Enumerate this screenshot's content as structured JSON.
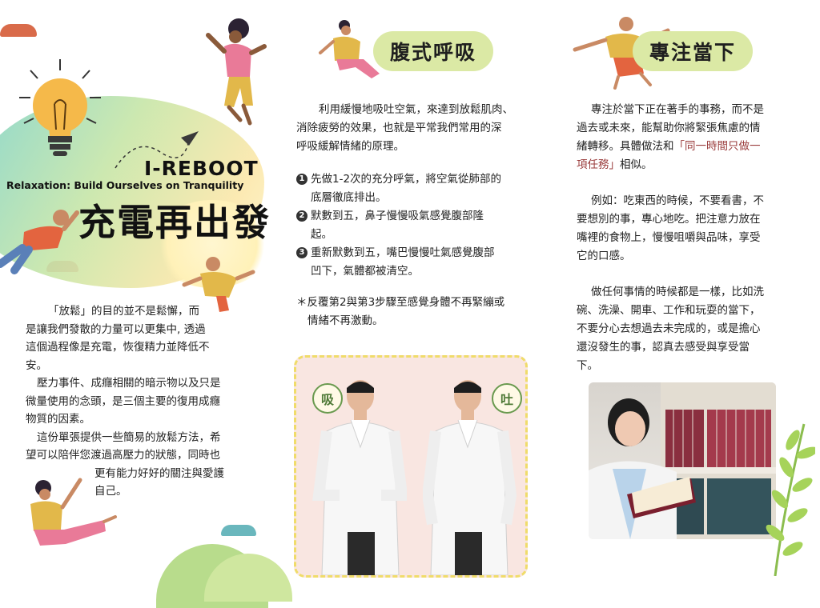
{
  "left": {
    "brand_title": "I-REBOOT",
    "brand_subtitle": "Relaxation: Build Ourselves on Tranquility",
    "brand_cn": "充電再出發",
    "para1_line1": "「放鬆」的目的並不是鬆懈，而",
    "para1_line2": "是讓我們發散的力量可以更集中, 透過",
    "para1_line3": "這個過程像是充電，恢復精力並降低不",
    "para1_line4": "安。",
    "para2_line1": "壓力事件、成癮相關的暗示物以及只是",
    "para2_line2": "微量使用的念頭，是三個主要的復用成癮",
    "para2_line3": "物質的因素。",
    "para3_line1": "這份單張提供一些簡易的放鬆方法，希",
    "para3_line2": "望可以陪伴您渡過高壓力的狀態，同時也",
    "para3_line3": "更有能力好好的關注與愛護",
    "para3_line4": "自己。"
  },
  "middle": {
    "header": "腹式呼吸",
    "intro_line1": "利用緩慢地吸吐空氣，來達到放鬆肌肉、",
    "intro_line2": "消除疲勞的效果，也就是平常我們常用的深",
    "intro_line3": "呼吸緩解情緒的原理。",
    "steps": [
      {
        "num": "1",
        "line1": "先做1-2次的充分呼氣，將空氣從肺部的",
        "line2": "底層徹底排出。"
      },
      {
        "num": "2",
        "line1": "默數到五，鼻子慢慢吸氣感覺腹部隆",
        "line2": "起。"
      },
      {
        "num": "3",
        "line1": "重新默數到五，嘴巴慢慢吐氣感覺腹部",
        "line2": "凹下，氣體都被清空。"
      }
    ],
    "note_line1": "＊反覆第2與第3步驟至感覺身體不再緊繃或",
    "note_line2": "情緒不再激動。",
    "inhale_label": "吸",
    "exhale_label": "吐"
  },
  "right": {
    "header": "專注當下",
    "p1_line1": "專注於當下正在著手的事務，而不是",
    "p1_line2": "過去或未來，能幫助你將緊張焦慮的情",
    "p1_line3": "緒轉移。具體做法和",
    "p1_highlight_a": "「同一時間只做一",
    "p1_highlight_b": "項任務」",
    "p1_tail": "相似。",
    "p2_line1": "例如：吃東西的時候，不要看書，不",
    "p2_line2": "要想別的事，專心地吃。把注意力放在",
    "p2_line3": "嘴裡的食物上，慢慢咀嚼與品味，享受",
    "p2_line4": "它的口感。",
    "p3_line1": "做任何事情的時候都是一樣，比如洗",
    "p3_line2": "碗、洗澡、開車、工作和玩耍的當下，",
    "p3_line3": "不要分心去想過去未完成的，或是擔心",
    "p3_line4": "還沒發生的事，認真去感受與享受當",
    "p3_line5": "下。"
  },
  "colors": {
    "pill": "#dbe9a5",
    "highlight": "#9a3b3b",
    "breath_bg": "#f9e6e1",
    "breath_border": "#f0dc6a"
  }
}
